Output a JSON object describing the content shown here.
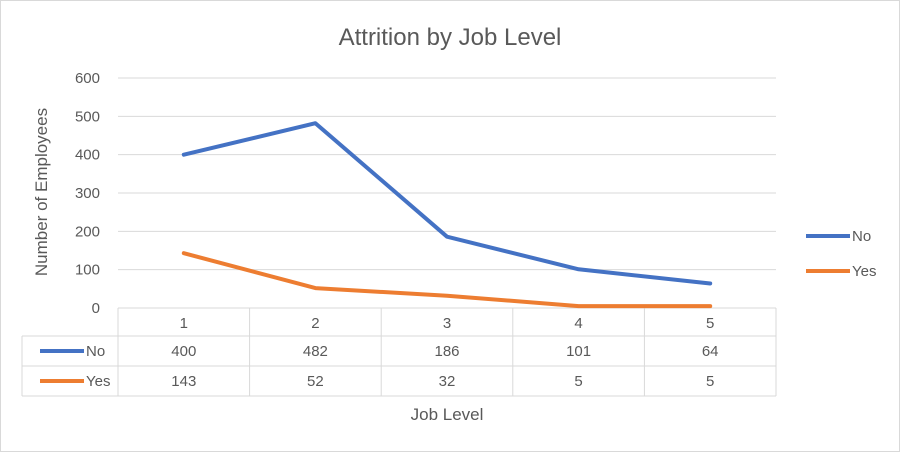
{
  "chart_data": {
    "type": "line",
    "title": "Attrition by Job Level",
    "xlabel": "Job Level",
    "ylabel": "Number of Employees",
    "categories": [
      "1",
      "2",
      "3",
      "4",
      "5"
    ],
    "ylim": [
      0,
      600
    ],
    "yticks": [
      "0",
      "100",
      "200",
      "300",
      "400",
      "500",
      "600"
    ],
    "grid": true,
    "legend_position": "right",
    "data_table": true,
    "series": [
      {
        "name": "No",
        "values": [
          400,
          482,
          186,
          101,
          64
        ],
        "color": "#4472c4"
      },
      {
        "name": "Yes",
        "values": [
          143,
          52,
          32,
          5,
          5
        ],
        "color": "#ed7d31"
      }
    ]
  }
}
